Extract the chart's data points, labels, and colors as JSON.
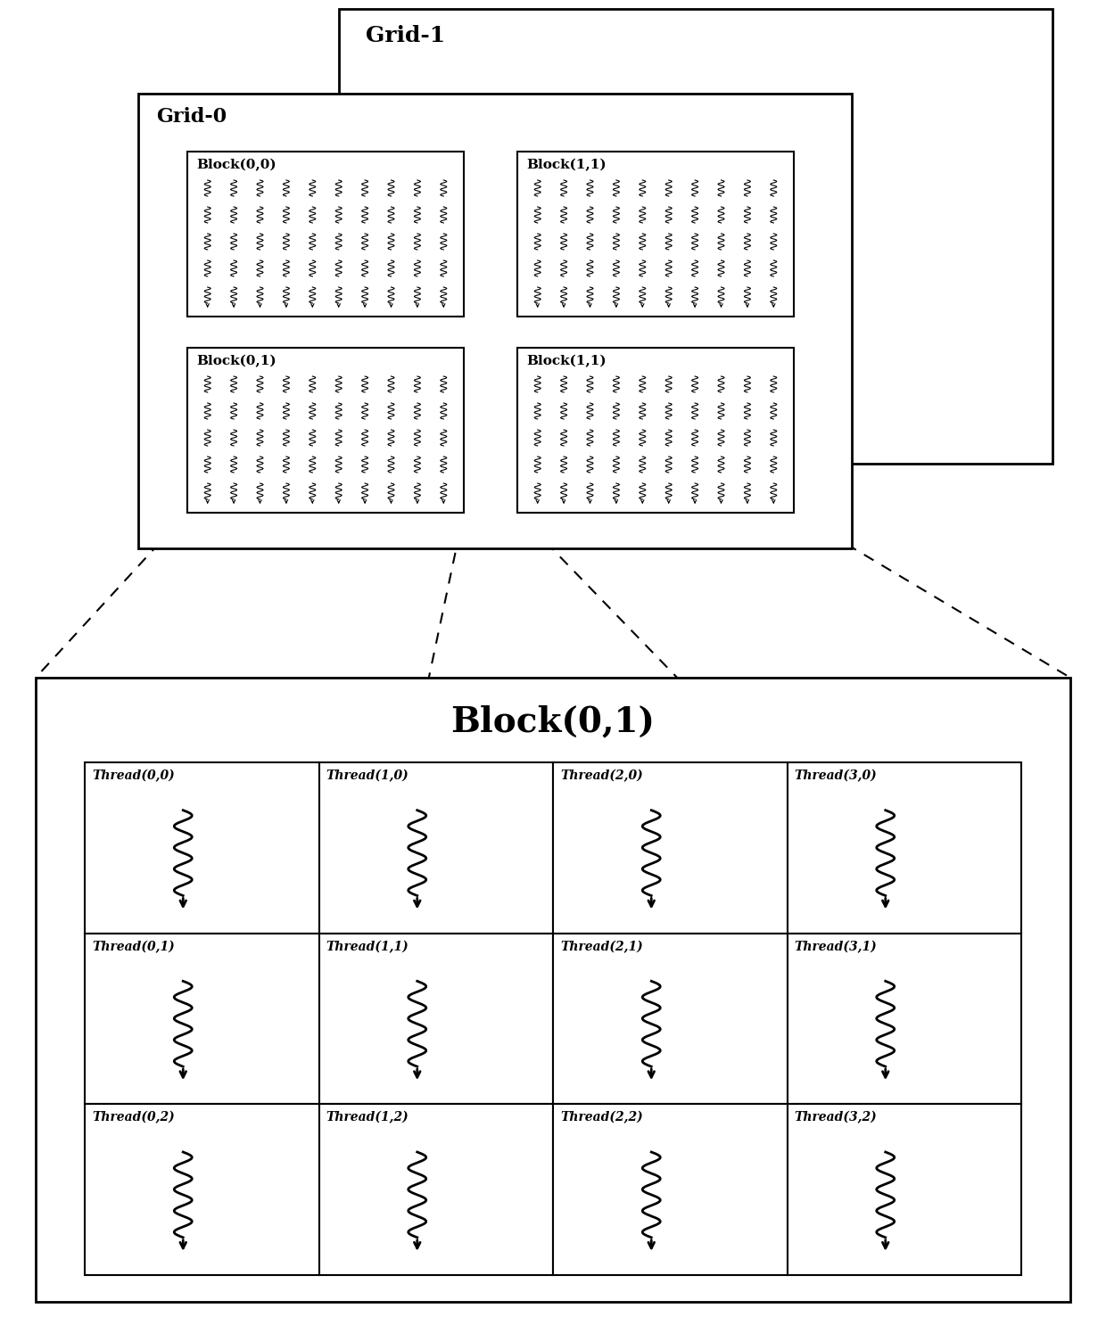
{
  "bg_color": "#ffffff",
  "grid1_label": "Grid-1",
  "grid0_label": "Grid-0",
  "block_detail_label": "Block(0,1)",
  "block_labels": [
    "Block(0,0)",
    "Block(1,1)",
    "Block(0,1)",
    "Block(1,1)"
  ],
  "thread_grid": [
    [
      "Thread(0,0)",
      "Thread(1,0)",
      "Thread(2,0)",
      "Thread(3,0)"
    ],
    [
      "Thread(0,1)",
      "Thread(1,1)",
      "Thread(2,1)",
      "Thread(3,1)"
    ],
    [
      "Thread(0,2)",
      "Thread(1,2)",
      "Thread(2,2)",
      "Thread(3,2)"
    ]
  ],
  "font_color": "#000000",
  "box_edge_color": "#000000"
}
